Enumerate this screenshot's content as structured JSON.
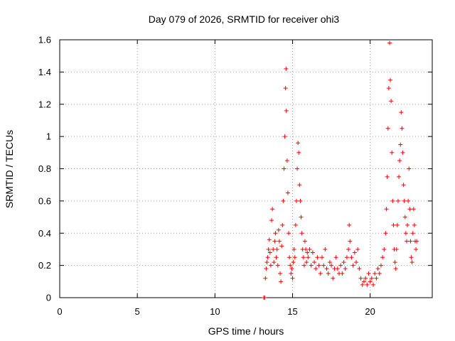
{
  "chart_data": {
    "type": "scatter",
    "title": "Day 079 of 2026, SRMTID for receiver ohi3",
    "xlabel": "GPS time / hours",
    "ylabel": "SRMTID / TECUs",
    "xlim": [
      0,
      24
    ],
    "ylim": [
      0,
      1.6
    ],
    "xticks": [
      0,
      5,
      10,
      15,
      20
    ],
    "yticks": [
      0,
      0.2,
      0.4,
      0.6,
      0.8,
      1,
      1.2,
      1.4,
      1.6
    ],
    "ytick_labels": [
      "0",
      "0.2",
      "0.4",
      "0.6",
      "0.8",
      "1",
      "1.2",
      "1.4",
      "1.6"
    ],
    "grid": true,
    "marker": "+",
    "series": [
      {
        "name": "SRMTID",
        "color": "#ff0000",
        "points": [
          [
            13.15,
            0.0
          ],
          [
            13.2,
            0.0
          ],
          [
            13.25,
            0.12
          ],
          [
            13.3,
            0.18
          ],
          [
            13.35,
            0.22
          ],
          [
            13.4,
            0.25
          ],
          [
            13.45,
            0.3
          ],
          [
            13.5,
            0.36
          ],
          [
            13.55,
            0.28
          ],
          [
            13.6,
            0.2
          ],
          [
            13.65,
            0.48
          ],
          [
            13.7,
            0.55
          ],
          [
            13.75,
            0.3
          ],
          [
            13.8,
            0.22
          ],
          [
            13.85,
            0.35
          ],
          [
            13.9,
            0.4
          ],
          [
            13.95,
            0.25
          ],
          [
            14.0,
            0.3
          ],
          [
            14.05,
            0.2
          ],
          [
            14.1,
            0.42
          ],
          [
            14.15,
            0.35
          ],
          [
            14.2,
            0.15
          ],
          [
            14.25,
            0.1
          ],
          [
            14.3,
            0.32
          ],
          [
            14.35,
            0.45
          ],
          [
            14.4,
            0.6
          ],
          [
            14.45,
            0.8
          ],
          [
            14.5,
            1.0
          ],
          [
            14.55,
            1.3
          ],
          [
            14.58,
            1.42
          ],
          [
            14.6,
            1.16
          ],
          [
            14.65,
            0.85
          ],
          [
            14.7,
            0.65
          ],
          [
            14.75,
            0.4
          ],
          [
            14.8,
            0.25
          ],
          [
            14.85,
            0.2
          ],
          [
            14.9,
            0.15
          ],
          [
            14.95,
            0.18
          ],
          [
            15.0,
            0.12
          ],
          [
            15.05,
            0.22
          ],
          [
            15.1,
            0.3
          ],
          [
            15.15,
            0.25
          ],
          [
            15.2,
            0.45
          ],
          [
            15.25,
            0.6
          ],
          [
            15.3,
            0.8
          ],
          [
            15.35,
            0.96
          ],
          [
            15.4,
            0.9
          ],
          [
            15.45,
            0.7
          ],
          [
            15.5,
            0.6
          ],
          [
            15.55,
            0.5
          ],
          [
            15.6,
            0.4
          ],
          [
            15.65,
            0.3
          ],
          [
            15.7,
            0.25
          ],
          [
            15.75,
            0.2
          ],
          [
            15.8,
            0.35
          ],
          [
            15.85,
            0.3
          ],
          [
            15.9,
            0.22
          ],
          [
            15.95,
            0.28
          ],
          [
            16.0,
            0.25
          ],
          [
            16.1,
            0.3
          ],
          [
            16.2,
            0.2
          ],
          [
            16.3,
            0.28
          ],
          [
            16.4,
            0.22
          ],
          [
            16.5,
            0.18
          ],
          [
            16.6,
            0.25
          ],
          [
            16.7,
            0.2
          ],
          [
            16.8,
            0.15
          ],
          [
            16.9,
            0.25
          ],
          [
            17.0,
            0.2
          ],
          [
            17.1,
            0.3
          ],
          [
            17.2,
            0.18
          ],
          [
            17.3,
            0.15
          ],
          [
            17.4,
            0.22
          ],
          [
            17.5,
            0.2
          ],
          [
            17.6,
            0.12
          ],
          [
            17.7,
            0.18
          ],
          [
            17.8,
            0.25
          ],
          [
            17.9,
            0.18
          ],
          [
            18.0,
            0.15
          ],
          [
            18.1,
            0.2
          ],
          [
            18.2,
            0.15
          ],
          [
            18.3,
            0.22
          ],
          [
            18.4,
            0.18
          ],
          [
            18.5,
            0.25
          ],
          [
            18.6,
            0.3
          ],
          [
            18.65,
            0.45
          ],
          [
            18.7,
            0.35
          ],
          [
            18.8,
            0.25
          ],
          [
            18.9,
            0.2
          ],
          [
            19.0,
            0.28
          ],
          [
            19.1,
            0.22
          ],
          [
            19.2,
            0.3
          ],
          [
            19.3,
            0.18
          ],
          [
            19.4,
            0.12
          ],
          [
            19.5,
            0.08
          ],
          [
            19.6,
            0.1
          ],
          [
            19.7,
            0.12
          ],
          [
            19.8,
            0.08
          ],
          [
            19.9,
            0.15
          ],
          [
            20.0,
            0.1
          ],
          [
            20.1,
            0.12
          ],
          [
            20.2,
            0.08
          ],
          [
            20.3,
            0.15
          ],
          [
            20.4,
            0.12
          ],
          [
            20.5,
            0.18
          ],
          [
            20.6,
            0.15
          ],
          [
            20.7,
            0.2
          ],
          [
            20.8,
            0.25
          ],
          [
            20.9,
            0.3
          ],
          [
            21.0,
            0.4
          ],
          [
            21.05,
            0.55
          ],
          [
            21.1,
            0.75
          ],
          [
            21.15,
            1.05
          ],
          [
            21.2,
            1.3
          ],
          [
            21.25,
            1.58
          ],
          [
            21.3,
            1.35
          ],
          [
            21.35,
            1.22
          ],
          [
            21.4,
            0.9
          ],
          [
            21.45,
            0.6
          ],
          [
            21.5,
            0.45
          ],
          [
            21.55,
            0.3
          ],
          [
            21.6,
            0.22
          ],
          [
            21.65,
            0.18
          ],
          [
            21.7,
            0.3
          ],
          [
            21.75,
            0.45
          ],
          [
            21.8,
            0.6
          ],
          [
            21.85,
            0.75
          ],
          [
            21.9,
            0.85
          ],
          [
            21.95,
            0.95
          ],
          [
            22.0,
            1.15
          ],
          [
            22.05,
            1.05
          ],
          [
            22.1,
            0.9
          ],
          [
            22.15,
            0.7
          ],
          [
            22.2,
            0.6
          ],
          [
            22.25,
            0.5
          ],
          [
            22.3,
            0.4
          ],
          [
            22.35,
            0.35
          ],
          [
            22.4,
            0.45
          ],
          [
            22.45,
            0.6
          ],
          [
            22.5,
            0.8
          ],
          [
            22.55,
            0.55
          ],
          [
            22.6,
            0.35
          ],
          [
            22.65,
            0.25
          ],
          [
            22.7,
            0.22
          ],
          [
            22.75,
            0.4
          ],
          [
            22.8,
            0.55
          ],
          [
            22.85,
            0.45
          ],
          [
            22.9,
            0.35
          ],
          [
            22.95,
            0.3
          ],
          [
            23.0,
            0.35
          ]
        ]
      }
    ]
  }
}
